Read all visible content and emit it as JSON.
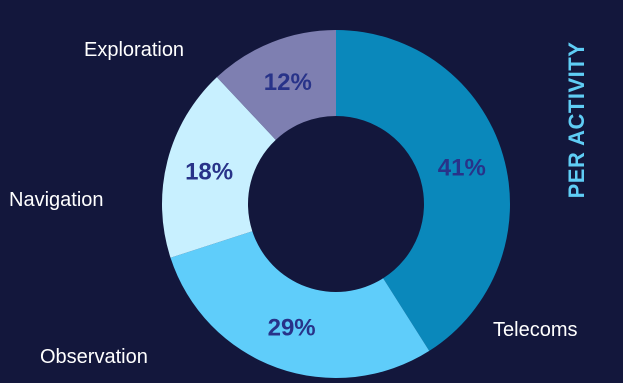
{
  "chart_data": {
    "type": "pie",
    "variant": "donut",
    "title": "",
    "side_label": "PER ACTIVITY",
    "slices": [
      {
        "label": "Telecoms",
        "value": 41,
        "display": "41%",
        "color": "#0a88bb"
      },
      {
        "label": "Observation",
        "value": 29,
        "display": "29%",
        "color": "#5fcdfa"
      },
      {
        "label": "Navigation",
        "value": 18,
        "display": "18%",
        "color": "#c8f0ff"
      },
      {
        "label": "Exploration",
        "value": 12,
        "display": "12%",
        "color": "#7e7fb1"
      }
    ],
    "start_angle": "12 o'clock",
    "direction": "clockwise",
    "background": "#13173c",
    "label_color": "#283389",
    "category_label_color": "#ffffff",
    "side_label_color": "#5fcdf5"
  }
}
